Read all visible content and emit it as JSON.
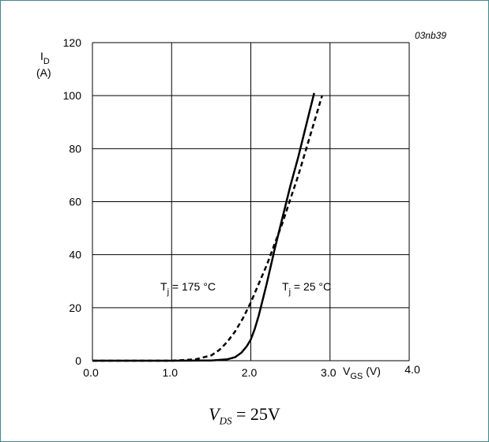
{
  "chart_data": {
    "type": "line",
    "figure_code": "03nb39",
    "ylabel": {
      "main": "I",
      "sub": "D",
      "unit": "(A)"
    },
    "xlabel": {
      "main": "V",
      "sub": "GS",
      "unit": "(V)"
    },
    "xlim": [
      0,
      4
    ],
    "ylim": [
      0,
      120
    ],
    "xticks": [
      "0.0",
      "1.0",
      "2.0",
      "3.0",
      "4.0"
    ],
    "yticks": [
      "0",
      "20",
      "40",
      "60",
      "80",
      "100",
      "120"
    ],
    "grid": true,
    "series": [
      {
        "name": "Tj = 25 °C",
        "style": "solid",
        "x": [
          0.0,
          1.0,
          1.5,
          1.7,
          1.8,
          1.88,
          1.95,
          2.0,
          2.05,
          2.1,
          2.2,
          2.3,
          2.4,
          2.5,
          2.6,
          2.7,
          2.8
        ],
        "y": [
          0.0,
          0.0,
          0.1,
          0.5,
          1.3,
          3.0,
          5.5,
          8.0,
          12.0,
          17.0,
          29.0,
          42.0,
          54.0,
          66.0,
          77.0,
          89.0,
          101.0
        ]
      },
      {
        "name": "Tj = 175 °C",
        "style": "dashed",
        "x": [
          0.0,
          1.0,
          1.3,
          1.5,
          1.6,
          1.7,
          1.8,
          1.9,
          2.0,
          2.1,
          2.2,
          2.3,
          2.4,
          2.5,
          2.6,
          2.7,
          2.8,
          2.9
        ],
        "y": [
          0.0,
          0.0,
          0.5,
          2.0,
          4.0,
          7.0,
          11.0,
          16.0,
          22.0,
          29.0,
          36.0,
          44.0,
          52.0,
          61.0,
          70.0,
          80.0,
          90.0,
          100.0
        ]
      }
    ],
    "annotations": [
      {
        "id": "tj175",
        "main": "T",
        "sub": "j",
        "rest": " = 175 °C",
        "x": 1.05,
        "y": 26
      },
      {
        "id": "tj25",
        "main": "T",
        "sub": "j",
        "rest": " = 25 °C",
        "x": 2.4,
        "y": 26
      }
    ]
  },
  "condition": {
    "main": "V",
    "sub": "DS",
    "rest": " = 25V"
  }
}
